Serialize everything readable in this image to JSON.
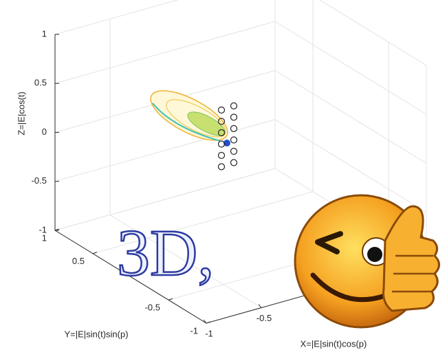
{
  "chart_data": {
    "type": "surface3d",
    "xlabel": "X=|E|sin(t)cos(p)",
    "ylabel": "Y=|E|sin(t)sin(p)",
    "zlabel": "Z=|E|cos(t)",
    "xlim": [
      -1,
      1
    ],
    "ylim": [
      -1,
      1
    ],
    "zlim": [
      -1,
      1
    ],
    "xticks": [
      -1,
      -0.5
    ],
    "yticks": [
      1,
      0.5,
      -0.5,
      -1
    ],
    "zticks": [
      -1,
      -0.5,
      0,
      0.5,
      1
    ],
    "grid": true,
    "overlay_text": "3D,"
  }
}
